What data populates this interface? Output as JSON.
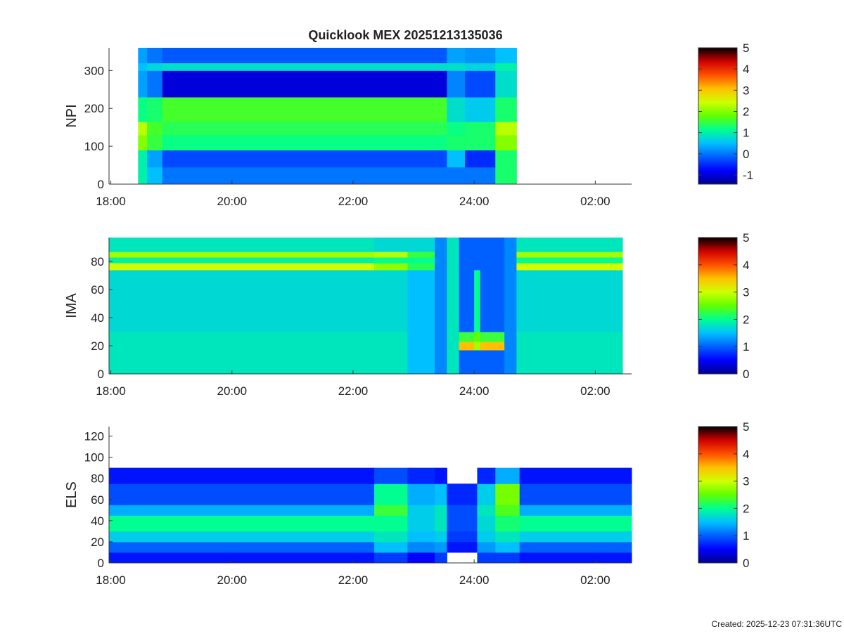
{
  "footer": "Created: 2025-12-23 07:31:36UTC",
  "chart_data": [
    {
      "type": "heatmap",
      "title": "Quicklook MEX 20251213135036",
      "ylabel": "NPI",
      "xlim": [
        17.97,
        26.6
      ],
      "xticks": [
        {
          "value": 18,
          "label": "18:00"
        },
        {
          "value": 20,
          "label": "20:00"
        },
        {
          "value": 22,
          "label": "22:00"
        },
        {
          "value": 24,
          "label": "24:00"
        },
        {
          "value": 26,
          "label": "02:00"
        }
      ],
      "ylim": [
        0,
        360
      ],
      "yticks": [
        0,
        100,
        200,
        300
      ],
      "clim": [
        -1.43,
        5
      ],
      "cticks": [
        -1,
        0,
        1,
        2,
        3,
        4,
        5
      ],
      "colormap": [
        "#00008f",
        "#0000ff",
        "#0060ff",
        "#00c0ff",
        "#00ff90",
        "#60ff00",
        "#d0ff00",
        "#ffc000",
        "#ff5000",
        "#d00000",
        "#000000"
      ],
      "xedges": [
        18.45,
        18.6,
        18.85,
        23.55,
        23.85,
        24.35,
        24.7
      ],
      "yedges": [
        0,
        45,
        90,
        130,
        165,
        230,
        300,
        320,
        360
      ],
      "z": [
        [
          1.0,
          0.5,
          0.0,
          0.0,
          0.0,
          1.3
        ],
        [
          1.0,
          0.3,
          -0.3,
          0.5,
          -0.5,
          1.3
        ],
        [
          2.0,
          1.5,
          1.2,
          1.3,
          1.3,
          2.0
        ],
        [
          2.3,
          1.6,
          1.4,
          1.2,
          1.3,
          2.3
        ],
        [
          1.2,
          1.3,
          1.6,
          0.8,
          0.6,
          1.3
        ],
        [
          0.3,
          0.0,
          -1.0,
          0.1,
          -0.3,
          0.8
        ],
        [
          0.5,
          0.7,
          0.8,
          0.8,
          0.7,
          1.0
        ],
        [
          0.3,
          0.0,
          -0.2,
          0.3,
          0.2,
          0.5
        ]
      ]
    },
    {
      "type": "heatmap",
      "ylabel": "IMA",
      "xlim": [
        17.97,
        26.6
      ],
      "xticks": [
        {
          "value": 18,
          "label": "18:00"
        },
        {
          "value": 20,
          "label": "20:00"
        },
        {
          "value": 22,
          "label": "22:00"
        },
        {
          "value": 24,
          "label": "24:00"
        },
        {
          "value": 26,
          "label": "02:00"
        }
      ],
      "ylim": [
        0,
        97
      ],
      "yticks": [
        0,
        20,
        40,
        60,
        80
      ],
      "clim": [
        0,
        5
      ],
      "cticks": [
        0,
        1,
        2,
        3,
        4,
        5
      ],
      "colormap": [
        "#00008f",
        "#0000ff",
        "#0060ff",
        "#00c0ff",
        "#00ff90",
        "#60ff00",
        "#d0ff00",
        "#ffc000",
        "#ff5000",
        "#d00000",
        "#000000"
      ],
      "xedges": [
        17.97,
        22.35,
        22.9,
        23.35,
        23.55,
        23.75,
        24.0,
        24.1,
        24.5,
        24.7,
        26.45
      ],
      "yedges": [
        0,
        17,
        23,
        30,
        74,
        79,
        83,
        87,
        97
      ],
      "z": [
        [
          1.8,
          1.8,
          1.5,
          1.2,
          1.8,
          1.0,
          1.0,
          1.0,
          1.2,
          1.8
        ],
        [
          1.8,
          1.8,
          1.5,
          1.2,
          1.8,
          3.5,
          2.8,
          3.5,
          1.2,
          1.8
        ],
        [
          1.8,
          1.8,
          1.5,
          1.2,
          1.8,
          2.3,
          2.5,
          2.3,
          1.2,
          1.8
        ],
        [
          1.7,
          1.7,
          1.5,
          1.2,
          1.8,
          1.0,
          2.0,
          1.0,
          1.2,
          1.7
        ],
        [
          3.0,
          2.7,
          2.2,
          1.2,
          1.8,
          1.0,
          1.0,
          1.0,
          1.2,
          3.0
        ],
        [
          1.9,
          2.0,
          2.0,
          1.2,
          1.8,
          1.0,
          1.0,
          1.0,
          1.2,
          2.0
        ],
        [
          2.8,
          2.9,
          2.3,
          1.2,
          1.8,
          1.0,
          1.0,
          1.0,
          1.2,
          2.8
        ],
        [
          1.8,
          1.7,
          1.7,
          1.2,
          1.8,
          1.0,
          1.0,
          1.0,
          1.2,
          1.8
        ]
      ]
    },
    {
      "type": "heatmap",
      "ylabel": "ELS",
      "xlim": [
        17.97,
        26.6
      ],
      "xticks": [
        {
          "value": 18,
          "label": "18:00"
        },
        {
          "value": 20,
          "label": "20:00"
        },
        {
          "value": 22,
          "label": "22:00"
        },
        {
          "value": 24,
          "label": "24:00"
        },
        {
          "value": 26,
          "label": "02:00"
        }
      ],
      "ylim": [
        0,
        129
      ],
      "yticks": [
        0,
        20,
        40,
        60,
        80,
        100,
        120
      ],
      "clim": [
        0,
        5
      ],
      "cticks": [
        0,
        1,
        2,
        3,
        4,
        5
      ],
      "colormap": [
        "#00008f",
        "#0000ff",
        "#0060ff",
        "#00c0ff",
        "#00ff90",
        "#60ff00",
        "#d0ff00",
        "#ffc000",
        "#ff5000",
        "#d00000",
        "#000000"
      ],
      "xedges": [
        17.97,
        22.35,
        22.9,
        23.35,
        23.55,
        24.05,
        24.35,
        24.75,
        26.6
      ],
      "yedges": [
        0,
        10,
        20,
        30,
        45,
        55,
        75,
        90,
        130
      ],
      "z": [
        [
          0.6,
          0.8,
          0.5,
          0.8,
          null,
          0.8,
          0.8,
          0.6
        ],
        [
          1.0,
          1.5,
          1.2,
          1.3,
          0.6,
          1.3,
          1.5,
          1.0
        ],
        [
          1.6,
          1.8,
          1.5,
          1.6,
          0.8,
          1.6,
          1.8,
          1.6
        ],
        [
          2.0,
          2.0,
          1.6,
          1.8,
          0.9,
          1.7,
          2.1,
          2.0
        ],
        [
          1.4,
          2.3,
          1.6,
          1.8,
          0.9,
          1.8,
          2.4,
          1.4
        ],
        [
          0.9,
          2.0,
          1.4,
          1.5,
          0.7,
          1.6,
          2.6,
          0.9
        ],
        [
          0.6,
          0.9,
          0.7,
          0.6,
          null,
          0.7,
          1.4,
          0.6
        ],
        [
          null,
          null,
          null,
          null,
          null,
          null,
          null,
          null
        ]
      ]
    }
  ]
}
